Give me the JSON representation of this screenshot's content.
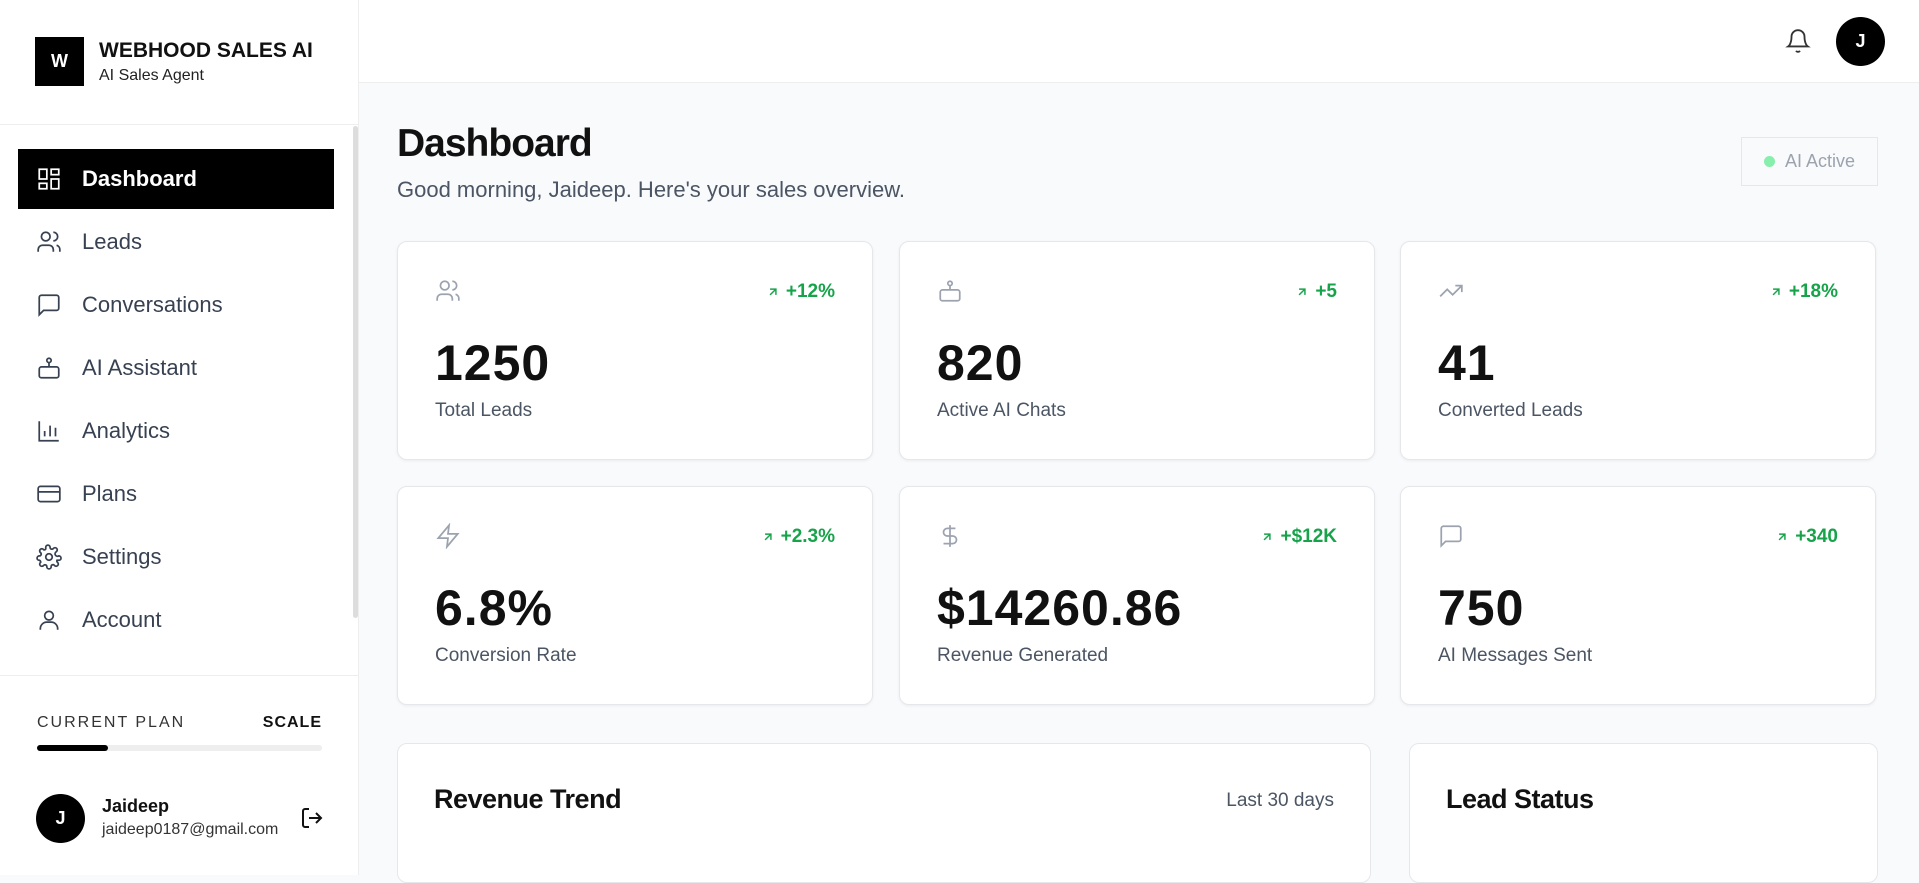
{
  "brand": {
    "title": "WEBHOOD SALES AI",
    "subtitle": "AI Sales Agent",
    "logo": "W"
  },
  "nav": [
    "Dashboard",
    "Leads",
    "Conversations",
    "AI Assistant",
    "Analytics",
    "Plans",
    "Settings",
    "Account"
  ],
  "plan": {
    "label": "CURRENT PLAN",
    "name": "SCALE"
  },
  "user": {
    "initial": "J",
    "name": "Jaideep",
    "email": "jaideep0187@gmail.com"
  },
  "header": {
    "avatar": "J"
  },
  "page": {
    "title": "Dashboard",
    "subtitle": "Good morning, Jaideep. Here's your sales overview.",
    "status": "AI Active"
  },
  "stats": [
    {
      "value": "1250",
      "label": "Total Leads",
      "change": "+12%"
    },
    {
      "value": "820",
      "label": "Active AI Chats",
      "change": "+5"
    },
    {
      "value": "41",
      "label": "Converted Leads",
      "change": "+18%"
    },
    {
      "value": "6.8%",
      "label": "Conversion Rate",
      "change": "+2.3%"
    },
    {
      "value": "$14260.86",
      "label": "Revenue Generated",
      "change": "+$12K"
    },
    {
      "value": "750",
      "label": "AI Messages Sent",
      "change": "+340"
    }
  ],
  "panels": {
    "revenue": {
      "title": "Revenue Trend",
      "range": "Last 30 days"
    },
    "leads": {
      "title": "Lead Status"
    }
  }
}
